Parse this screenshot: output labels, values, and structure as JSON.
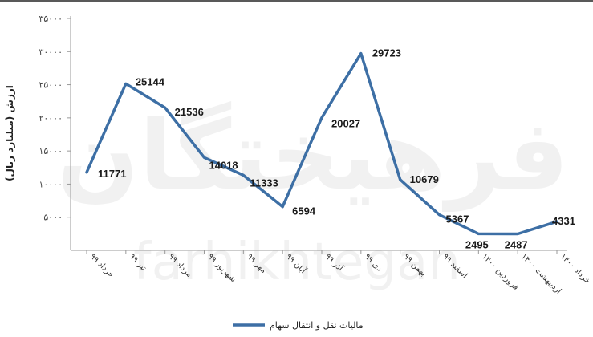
{
  "chart_data": {
    "type": "line",
    "ylabel": "ارزش (میلیارد ریال)",
    "ylim": [
      0,
      35000
    ],
    "yticks": [
      {
        "value": 5000,
        "label": "۵۰۰۰"
      },
      {
        "value": 10000,
        "label": "۱۰۰۰۰"
      },
      {
        "value": 15000,
        "label": "۱۵۰۰۰"
      },
      {
        "value": 20000,
        "label": "۲۰۰۰۰"
      },
      {
        "value": 25000,
        "label": "۲۵۰۰۰"
      },
      {
        "value": 30000,
        "label": "۳۰۰۰۰"
      },
      {
        "value": 35000,
        "label": "۳۵۰۰۰"
      }
    ],
    "categories": [
      "خرداد ۹۹",
      "تیر ۹۹",
      "مرداد ۹۹",
      "شهریور ۹۹",
      "مهر ۹۹",
      "آبان ۹۹",
      "آذر ۹۹",
      "دی ۹۹",
      "بهمن ۹۹",
      "اسفند ۹۹",
      "فروردین ۱۴۰۰",
      "اردیبهشت ۱۴۰۰",
      "خرداد ۱۴۰۰"
    ],
    "series": [
      {
        "name": "مالیات نقل و انتقال سهام",
        "color": "#3d6fa5",
        "values": [
          11771,
          25144,
          21536,
          14018,
          11333,
          6594,
          20027,
          29723,
          10679,
          5367,
          2495,
          2487,
          4331
        ],
        "value_labels": [
          "11771",
          "25144",
          "21536",
          "14018",
          "11333",
          "6594",
          "20027",
          "29723",
          "10679",
          "5367",
          "2495",
          "2487",
          "4331"
        ]
      }
    ],
    "grid": false,
    "legend": "bottom-center"
  },
  "watermark": {
    "primary": "فرهیختگان",
    "secondary": "farhikhtegan"
  }
}
